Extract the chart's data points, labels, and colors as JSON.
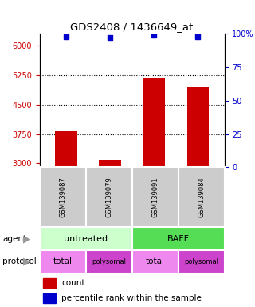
{
  "title": "GDS2408 / 1436649_at",
  "samples": [
    "GSM139087",
    "GSM139079",
    "GSM139091",
    "GSM139084"
  ],
  "counts": [
    3830,
    3080,
    5170,
    4950
  ],
  "percentile_ranks": [
    98,
    97,
    99,
    98
  ],
  "ylim_left": [
    2900,
    6300
  ],
  "ylim_right": [
    0,
    100
  ],
  "yticks_left": [
    3000,
    3750,
    4500,
    5250,
    6000
  ],
  "yticks_right": [
    0,
    25,
    50,
    75,
    100
  ],
  "ytick_labels_right": [
    "0",
    "25",
    "50",
    "75",
    "100%"
  ],
  "bar_color": "#cc0000",
  "dot_color": "#0000cc",
  "agent_colors": [
    "#ccffcc",
    "#55dd55"
  ],
  "protocol_colors": [
    "#ee88ee",
    "#cc44cc"
  ],
  "cell_bg": "#cccccc",
  "legend_count_color": "#cc0000",
  "legend_dot_color": "#0000cc"
}
